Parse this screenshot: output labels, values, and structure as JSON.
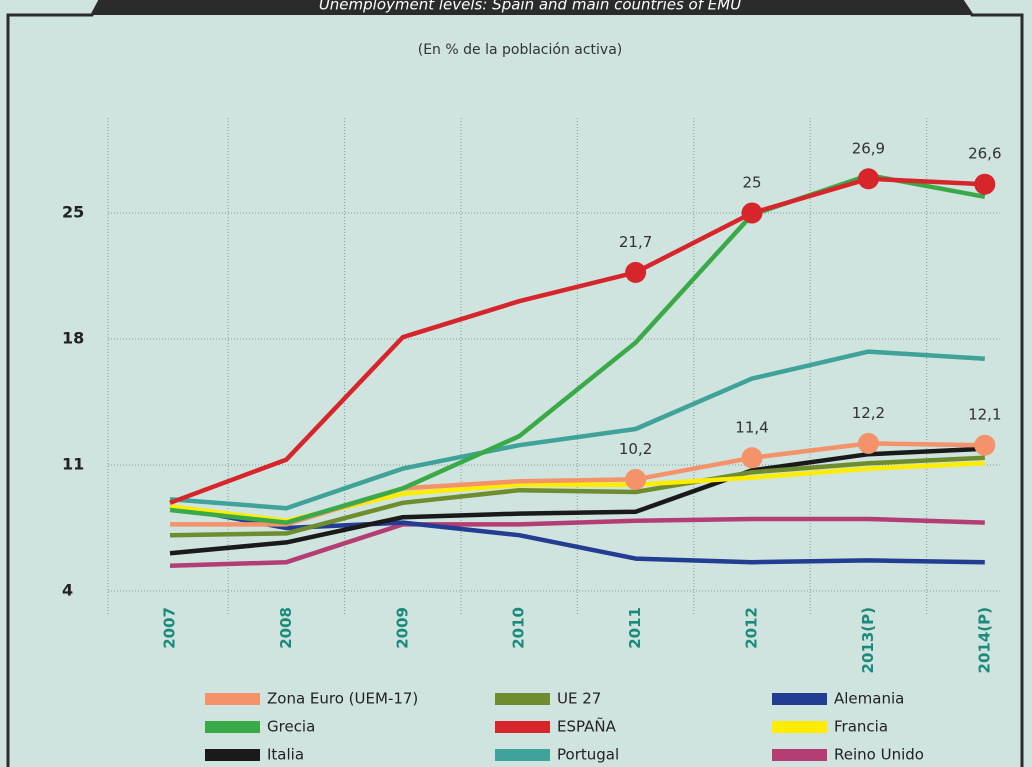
{
  "chart_data": {
    "type": "line",
    "title": "Unemployment levels: Spain and main countries of EMU",
    "subtitle": "(En % de la población activa)",
    "categories": [
      "2007",
      "2008",
      "2009",
      "2010",
      "2011",
      "2012",
      "2013(P)",
      "2014(P)"
    ],
    "ylim": [
      4,
      30
    ],
    "yticks": [
      4,
      11,
      18,
      25
    ],
    "grid": true,
    "series": [
      {
        "name": "Zona Euro (UEM-17)",
        "color": "#f4926a",
        "values": [
          7.7,
          7.7,
          9.7,
          10.1,
          10.2,
          11.4,
          12.2,
          12.1
        ],
        "value_labels": [
          null,
          null,
          null,
          null,
          "10,2",
          "11,4",
          "12,2",
          "12,1"
        ]
      },
      {
        "name": "UE 27",
        "color": "#6f8c2f",
        "values": [
          7.1,
          7.2,
          8.9,
          9.6,
          9.5,
          10.6,
          11.1,
          11.4
        ]
      },
      {
        "name": "Alemania",
        "color": "#233d92",
        "values": [
          8.7,
          7.5,
          7.8,
          7.1,
          5.8,
          5.6,
          5.7,
          5.6
        ]
      },
      {
        "name": "Grecia",
        "color": "#3aaa48",
        "values": [
          8.5,
          7.8,
          9.7,
          12.6,
          17.8,
          24.9,
          27.1,
          25.9
        ]
      },
      {
        "name": "ESPAÑA",
        "color": "#d7262b",
        "values": [
          8.9,
          11.3,
          18.1,
          20.1,
          21.7,
          25,
          26.9,
          26.6
        ],
        "value_labels": [
          null,
          null,
          null,
          null,
          "21,7",
          "25",
          "26,9",
          "26,6"
        ]
      },
      {
        "name": "Francia",
        "color": "#ffed00",
        "values": [
          8.7,
          7.9,
          9.4,
          9.9,
          9.9,
          10.3,
          10.8,
          11.1
        ]
      },
      {
        "name": "Italia",
        "color": "#1a1a1a",
        "values": [
          6.1,
          6.7,
          8.1,
          8.3,
          8.4,
          10.7,
          11.6,
          11.9
        ]
      },
      {
        "name": "Portugal",
        "color": "#3fa39a",
        "values": [
          9.1,
          8.6,
          10.8,
          12.1,
          13.0,
          15.8,
          17.3,
          16.9
        ]
      },
      {
        "name": "Reino Unido",
        "color": "#b43e74",
        "values": [
          5.4,
          5.6,
          7.7,
          7.7,
          7.9,
          8.0,
          8.0,
          7.8
        ]
      }
    ]
  }
}
